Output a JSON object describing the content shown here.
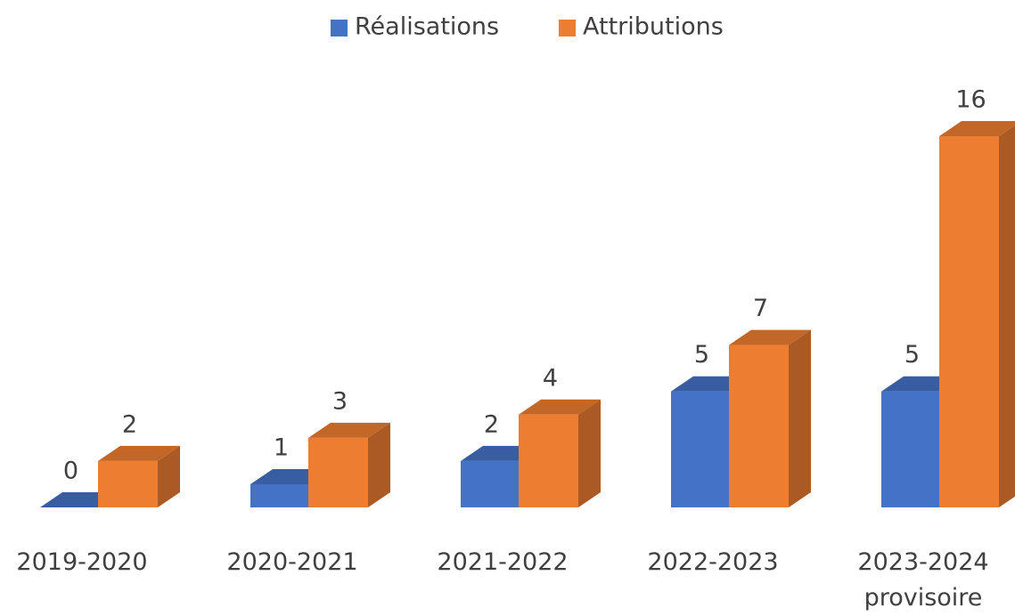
{
  "chart_data": {
    "type": "bar3d",
    "categories": [
      "2019-2020",
      "2020-2021",
      "2021-2022",
      "2022-2023",
      "2023-2024 provisoire"
    ],
    "series": [
      {
        "name": "Réalisations",
        "color": "#4472c4",
        "values": [
          0,
          1,
          2,
          5,
          5
        ]
      },
      {
        "name": "Attributions",
        "color": "#ed7d31",
        "values": [
          2,
          3,
          4,
          7,
          16
        ]
      }
    ],
    "legend": "top"
  }
}
